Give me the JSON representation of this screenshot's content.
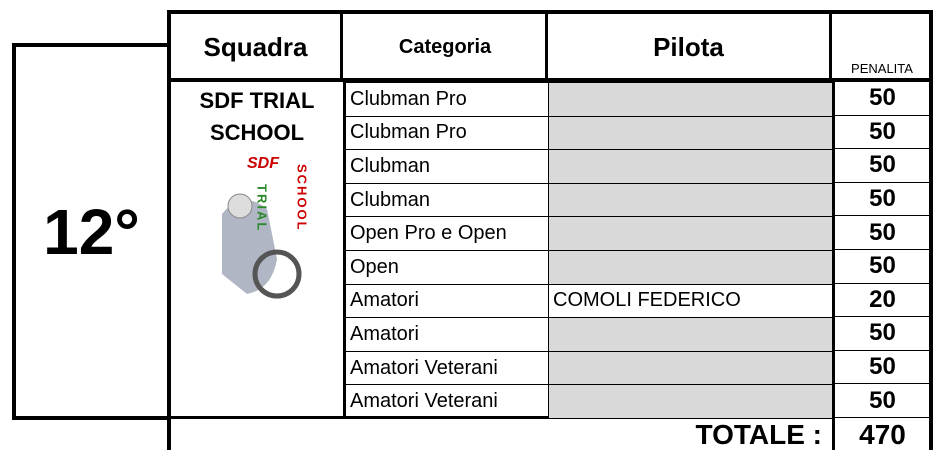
{
  "position": "12°",
  "header": {
    "team": "Squadra",
    "category": "Categoria",
    "pilot": "Pilota",
    "penalty": "PENALITA"
  },
  "team": {
    "name_lines": [
      "SDF TRIAL",
      "SCHOOL"
    ],
    "logo": {
      "top": "SDF",
      "left": "TRIAL",
      "right": "SCHOOL"
    }
  },
  "rows": [
    {
      "category": "Clubman Pro",
      "penalty": 50
    },
    {
      "category": "Clubman Pro",
      "penalty": 50
    },
    {
      "category": "Clubman",
      "penalty": 50
    },
    {
      "category": "Clubman",
      "penalty": 50
    },
    {
      "category": "Open Pro e Open",
      "penalty": 50
    },
    {
      "category": "Open",
      "penalty": 50
    },
    {
      "category": "Amatori",
      "pilot": "COMOLI FEDERICO",
      "penalty": 20
    },
    {
      "category": "Amatori",
      "penalty": 50
    },
    {
      "category": "Amatori Veterani",
      "penalty": 50
    },
    {
      "category": "Amatori Veterani",
      "penalty": 50
    }
  ],
  "total": {
    "label": "TOTALE :",
    "value": 470
  }
}
